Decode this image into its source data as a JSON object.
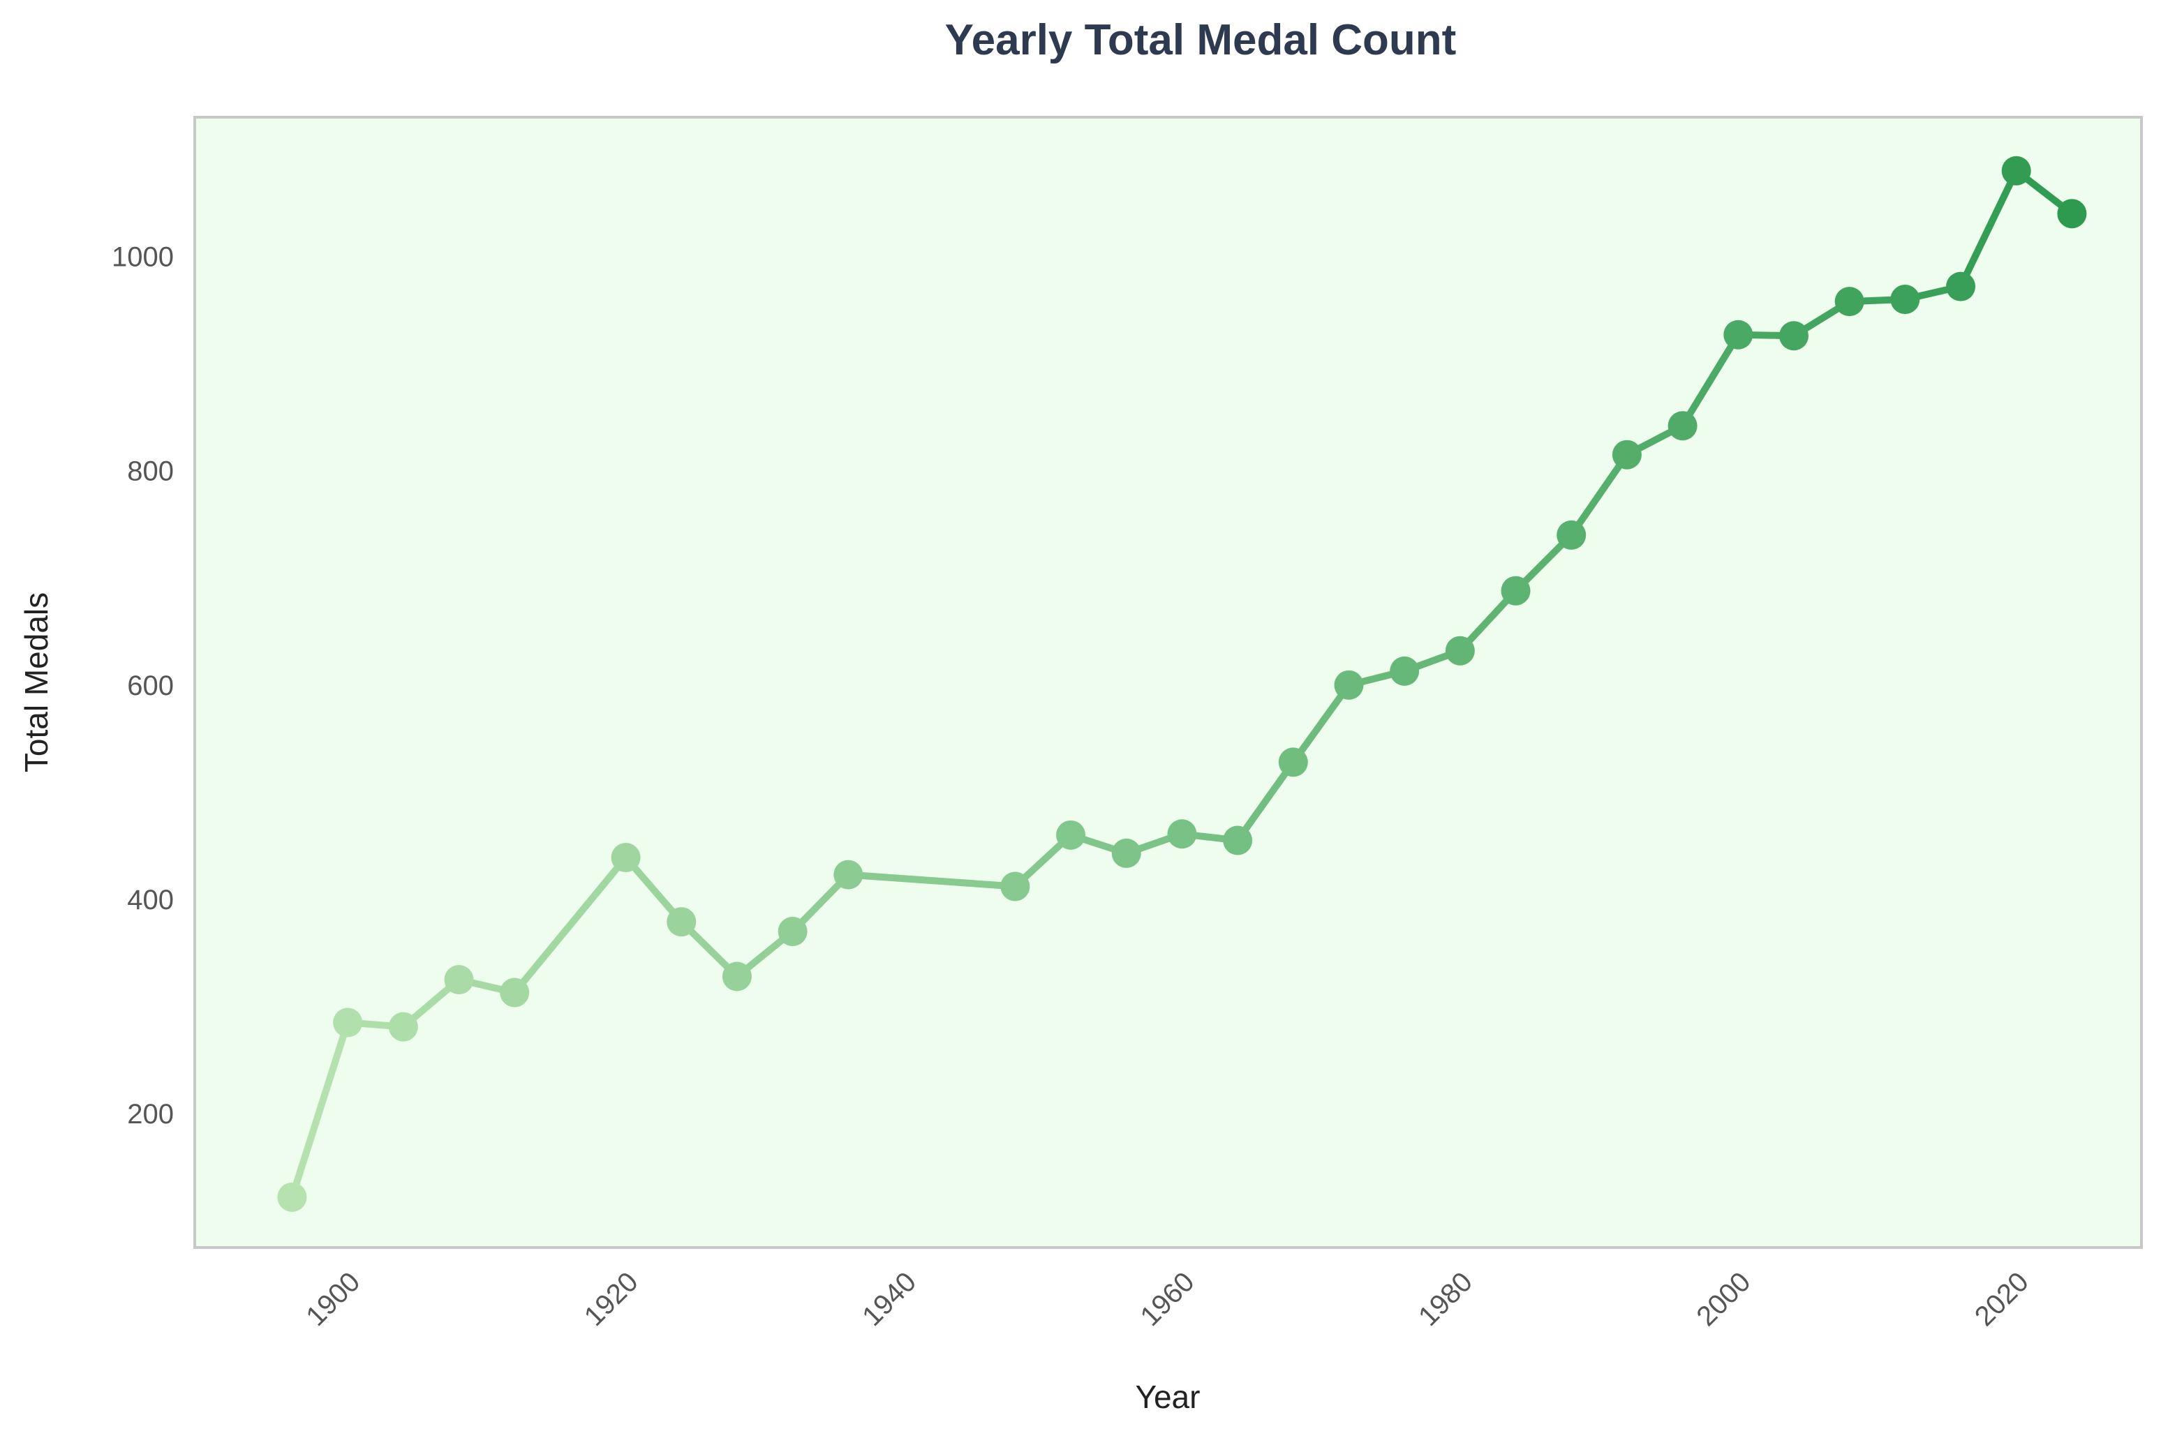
{
  "chart_data": {
    "type": "line",
    "title": "Yearly Total Medal Count",
    "xlabel": "Year",
    "ylabel": "Total Medals",
    "xlim": [
      1889,
      2029
    ],
    "ylim": [
      75,
      1130
    ],
    "xticks": [
      1900,
      1920,
      1940,
      1960,
      1980,
      2000,
      2020
    ],
    "yticks": [
      200,
      400,
      600,
      800,
      1000
    ],
    "grid": false,
    "legend": "none",
    "colors": {
      "plot_background": "#eefdee",
      "frame": "#c8c8c8",
      "gradient_start": "#b6e2b0",
      "gradient_end": "#2e9a50"
    },
    "series": [
      {
        "x": [
          1896,
          1900,
          1904,
          1908,
          1912,
          1920,
          1924,
          1928,
          1932,
          1936,
          1948,
          1952,
          1956,
          1960,
          1964,
          1968,
          1972,
          1976,
          1980,
          1984,
          1988,
          1992,
          1996,
          2000,
          2004,
          2008,
          2012,
          2016,
          2020,
          2024
        ],
        "y": [
          122,
          285,
          281,
          325,
          313,
          439,
          379,
          328,
          370,
          423,
          412,
          460,
          443,
          461,
          455,
          528,
          600,
          613,
          632,
          688,
          740,
          815,
          842,
          927,
          926,
          958,
          960,
          972,
          1080,
          1040
        ]
      }
    ]
  }
}
